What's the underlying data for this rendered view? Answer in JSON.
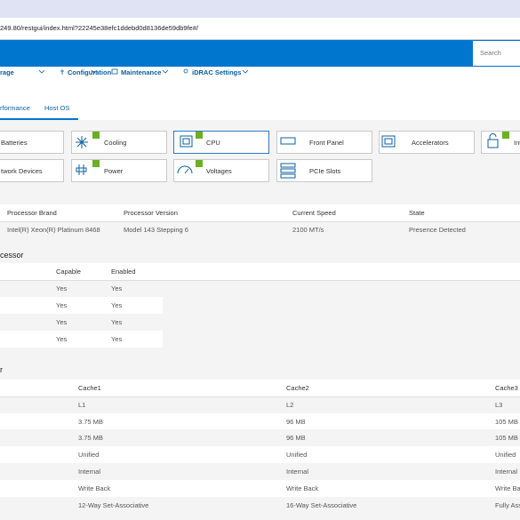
{
  "browser": {
    "url": "249.80/restgui/index.html?22245e38efc1ddebd0d8136de59db9fe#/"
  },
  "header": {
    "search_placeholder": "Search"
  },
  "nav": [
    "rage",
    "Configuration",
    "Maintenance",
    "iDRAC Settings"
  ],
  "tabs": [
    "rformance",
    "Host OS"
  ],
  "tiles": [
    "Batteries",
    "Cooling",
    "CPU",
    "Front Panel",
    "Accelerators",
    "Int",
    "twork Devices",
    "Power",
    "Voltages",
    "PCIe Slots"
  ],
  "processor_table": {
    "columns": [
      "Processor Brand",
      "Processor Version",
      "Current Speed",
      "State"
    ],
    "rows": [
      [
        "Intel(R) Xeon(R) Platinum 8468",
        "Model 143 Stepping 6",
        "2100 MT/s",
        "Presence Detected"
      ]
    ]
  },
  "capabilities": {
    "title": "cessor",
    "columns": [
      "Capable",
      "Enabled"
    ],
    "rows": [
      [
        "Yes",
        "Yes"
      ],
      [
        "Yes",
        "Yes"
      ],
      [
        "Yes",
        "Yes"
      ],
      [
        "Yes",
        "Yes"
      ]
    ]
  },
  "cache": {
    "title": "r",
    "columns": [
      "Cache1",
      "Cache2",
      "Cache3"
    ],
    "rows": [
      [
        "L1",
        "L2",
        "L3"
      ],
      [
        "3.75 MB",
        "96 MB",
        "105 MB"
      ],
      [
        "3.75 MB",
        "96 MB",
        "105 MB"
      ],
      [
        "Unified",
        "Unified",
        "Unified"
      ],
      [
        "Internal",
        "Internal",
        "Internal"
      ],
      [
        "Write Back",
        "Write Back",
        "Write Back"
      ],
      [
        "12-Way Set-Associative",
        "16-Way Set-Associative",
        "Fully Ass"
      ]
    ]
  }
}
